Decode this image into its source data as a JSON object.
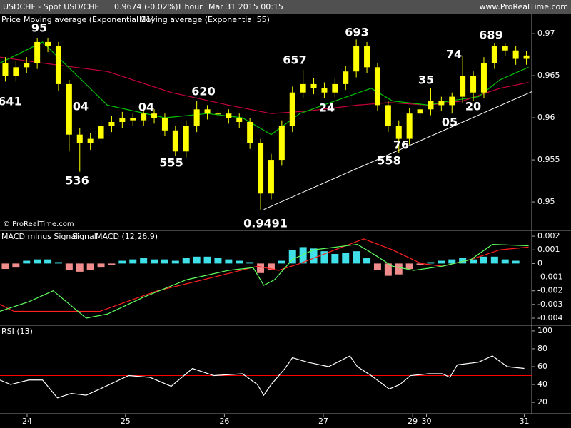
{
  "chart_data": [
    {
      "type": "candlestick",
      "title": "USDCHF - Spot USD/CHF",
      "subtitle": "0.9674 (-0.02%)",
      "interval": "1 hour",
      "date": "Mar 31 2015 00:15",
      "source": "www.ProRealTime.com",
      "copyright": "© ProRealTime.com",
      "xlim": [
        -0.5,
        49.5
      ],
      "ylim": [
        0.9467,
        0.9723
      ],
      "yticks": [
        0.95,
        0.955,
        0.96,
        0.965,
        0.97
      ],
      "price": {
        "name": "Price",
        "color": "#ffff00",
        "open": [
          0.9665,
          0.965,
          0.966,
          0.9665,
          0.969,
          0.9685,
          0.964,
          0.958,
          0.957,
          0.9575,
          0.959,
          0.9595,
          0.96,
          0.9597,
          0.9605,
          0.96,
          0.9585,
          0.956,
          0.959,
          0.961,
          0.9605,
          0.9605,
          0.96,
          0.9595,
          0.957,
          0.951,
          0.955,
          0.959,
          0.963,
          0.964,
          0.9635,
          0.963,
          0.964,
          0.9655,
          0.9685,
          0.966,
          0.9615,
          0.959,
          0.9575,
          0.9605,
          0.961,
          0.962,
          0.9615,
          0.9625,
          0.965,
          0.963,
          0.9665,
          0.9685,
          0.968,
          0.967
        ],
        "high": [
          0.9672,
          0.9667,
          0.9672,
          0.9695,
          0.9695,
          0.969,
          0.9645,
          0.9588,
          0.9582,
          0.9597,
          0.9602,
          0.9607,
          0.9605,
          0.9612,
          0.961,
          0.9605,
          0.959,
          0.9597,
          0.962,
          0.9615,
          0.9612,
          0.961,
          0.9605,
          0.96,
          0.9575,
          0.9557,
          0.9597,
          0.9637,
          0.9657,
          0.9647,
          0.9642,
          0.9647,
          0.9662,
          0.9693,
          0.969,
          0.9665,
          0.962,
          0.9597,
          0.9612,
          0.9617,
          0.9635,
          0.9625,
          0.963,
          0.9674,
          0.9655,
          0.9672,
          0.9689,
          0.9689,
          0.9685,
          0.9679
        ],
        "low": [
          0.9643,
          0.9643,
          0.9653,
          0.9658,
          0.9678,
          0.9632,
          0.956,
          0.9536,
          0.9562,
          0.9568,
          0.9583,
          0.9588,
          0.959,
          0.959,
          0.9593,
          0.9578,
          0.9555,
          0.9553,
          0.9583,
          0.9598,
          0.9598,
          0.9593,
          0.9588,
          0.9563,
          0.9491,
          0.9503,
          0.9543,
          0.9583,
          0.9623,
          0.9628,
          0.9623,
          0.9623,
          0.9633,
          0.9648,
          0.9653,
          0.9608,
          0.9583,
          0.9558,
          0.9568,
          0.9598,
          0.9603,
          0.9608,
          0.9605,
          0.9618,
          0.962,
          0.9623,
          0.9658,
          0.9673,
          0.9663,
          0.9663
        ],
        "close": [
          0.965,
          0.966,
          0.9665,
          0.969,
          0.9685,
          0.964,
          0.958,
          0.957,
          0.9575,
          0.959,
          0.9595,
          0.96,
          0.9597,
          0.9605,
          0.96,
          0.9585,
          0.956,
          0.959,
          0.961,
          0.9605,
          0.9605,
          0.96,
          0.9595,
          0.957,
          0.951,
          0.955,
          0.959,
          0.963,
          0.964,
          0.9635,
          0.963,
          0.964,
          0.9655,
          0.9685,
          0.966,
          0.9615,
          0.959,
          0.9575,
          0.9605,
          0.961,
          0.962,
          0.9615,
          0.9625,
          0.965,
          0.963,
          0.9665,
          0.9685,
          0.968,
          0.967,
          0.9674
        ]
      },
      "series": [
        {
          "name": "Moving average (Exponential 21)",
          "color": "#00c000",
          "x": [
            -0.5,
            3.5,
            9.6,
            15,
            19,
            22.3,
            25,
            27.7,
            31,
            34.4,
            36.4,
            39.8,
            41.8,
            44.5,
            46.5,
            49.2
          ],
          "values": [
            0.9665,
            0.969,
            0.9615,
            0.96,
            0.9605,
            0.96,
            0.958,
            0.9605,
            0.962,
            0.9635,
            0.962,
            0.9615,
            0.962,
            0.9625,
            0.9645,
            0.966
          ]
        },
        {
          "name": "Moving average (Exponential 55)",
          "color": "#c8003c",
          "x": [
            -0.5,
            3.5,
            9.6,
            15.6,
            21,
            25,
            28.4,
            33.1,
            36.1,
            39.8,
            43,
            46.5,
            49.2
          ],
          "values": [
            0.9672,
            0.9665,
            0.9655,
            0.963,
            0.9615,
            0.9605,
            0.9608,
            0.9615,
            0.9618,
            0.9615,
            0.962,
            0.9635,
            0.9642
          ]
        }
      ],
      "trendline": {
        "color": "#ffffff",
        "x": [
          24.3,
          49.5
        ],
        "values": [
          0.9491,
          0.9631
        ]
      },
      "annotations": [
        "95",
        "641",
        "04",
        "536",
        "04",
        "555",
        "620",
        "0.9491",
        "657",
        "24",
        "693",
        "558",
        "76",
        "35",
        "05",
        "74",
        "20",
        "689"
      ]
    },
    {
      "type": "combo",
      "xlim": [
        -0.5,
        49.5
      ],
      "ylim": [
        -0.00447,
        0.00237
      ],
      "yticks": [
        0.002,
        0.001,
        0,
        -0.001,
        -0.002,
        -0.003,
        -0.004
      ],
      "histogram": {
        "name": "MACD minus Signal",
        "color": "#40e0e8",
        "negative_color": "#f08c8c",
        "values": [
          -0.0004,
          -0.0003,
          0.0002,
          0.0003,
          0.0003,
          0.0001,
          -0.0005,
          -0.0006,
          -0.0005,
          -0.0003,
          -0.0001,
          0.0002,
          0.0003,
          0.0004,
          0.0003,
          0.0003,
          0.0002,
          0.0004,
          0.0005,
          0.0005,
          0.0004,
          0.0003,
          0.0002,
          0.0001,
          -0.0007,
          -0.0005,
          0.0002,
          0.001,
          0.0012,
          0.0011,
          0.0009,
          0.0007,
          0.0008,
          0.0009,
          0.0004,
          -0.0005,
          -0.0009,
          -0.0008,
          -0.0004,
          -0.0001,
          0.0001,
          0.0002,
          0.0003,
          0.0004,
          0.0003,
          0.0005,
          0.0005,
          0.0003,
          0.0002,
          0
        ]
      },
      "series": [
        {
          "name": "Signal",
          "color": "#ff2020",
          "x": [
            -0.5,
            0.8,
            3.5,
            8.9,
            14.3,
            19.6,
            23.7,
            25.7,
            27.7,
            31,
            33.7,
            36.4,
            39.1,
            41.1,
            43.8,
            46.5,
            49.2
          ],
          "values": [
            -0.003,
            -0.0035,
            -0.0035,
            -0.0035,
            -0.002,
            -0.001,
            -0.0002,
            -0.0005,
            0,
            0.001,
            0.0018,
            0.001,
            0,
            -0.0002,
            0.0003,
            0.001,
            0.0012
          ]
        },
        {
          "name": "MACD (12,26,9)",
          "color": "#60ff60",
          "x": [
            -0.5,
            2.2,
            4.5,
            7.6,
            9.6,
            12.9,
            17,
            21,
            23.3,
            24.3,
            25.3,
            27,
            29,
            33.1,
            34.4,
            36.4,
            38.4,
            41.1,
            43.8,
            45.8,
            49.2
          ],
          "values": [
            -0.0035,
            -0.0028,
            -0.002,
            -0.004,
            -0.0037,
            -0.0025,
            -0.0012,
            -0.0005,
            -0.0003,
            -0.0016,
            -0.0012,
            0.0003,
            0.001,
            0.0014,
            0.0008,
            -0.0002,
            -0.0005,
            -0.0002,
            0.0003,
            0.0014,
            0.0013
          ]
        }
      ]
    },
    {
      "type": "line",
      "xlim": [
        -0.5,
        49.5
      ],
      "ylim": [
        7.3,
        105.5
      ],
      "yticks": [
        20,
        40,
        60,
        80,
        100
      ],
      "xticks": [
        {
          "value": 2.05,
          "label": "24"
        },
        {
          "value": 11.3,
          "label": "25"
        },
        {
          "value": 20.6,
          "label": "26"
        },
        {
          "value": 29.9,
          "label": "27"
        },
        {
          "value": 38.3,
          "label": "29"
        },
        {
          "value": 39.6,
          "label": "30"
        },
        {
          "value": 48.8,
          "label": "31"
        }
      ],
      "level": {
        "value": 50,
        "color": "#ff0000"
      },
      "series": [
        {
          "name": "RSI (13)",
          "color": "#ffffff",
          "x": [
            -0.5,
            0.5,
            2.2,
            3.5,
            4.9,
            6.2,
            7.6,
            8.9,
            11.6,
            13.6,
            15.6,
            17.6,
            19.6,
            22.3,
            23.7,
            24.3,
            25,
            26.3,
            27,
            28.4,
            30.4,
            32.4,
            33.1,
            34.4,
            36.1,
            37.1,
            38.1,
            39.8,
            41.1,
            41.8,
            42.5,
            44.5,
            45.8,
            47.2,
            48.8
          ],
          "values": [
            45,
            40,
            45,
            45,
            25,
            30,
            28,
            35,
            50,
            48,
            38,
            58,
            50,
            52,
            40,
            28,
            40,
            58,
            70,
            65,
            60,
            72,
            60,
            50,
            35,
            40,
            50,
            52,
            52,
            48,
            62,
            65,
            72,
            60,
            58
          ]
        }
      ]
    }
  ]
}
